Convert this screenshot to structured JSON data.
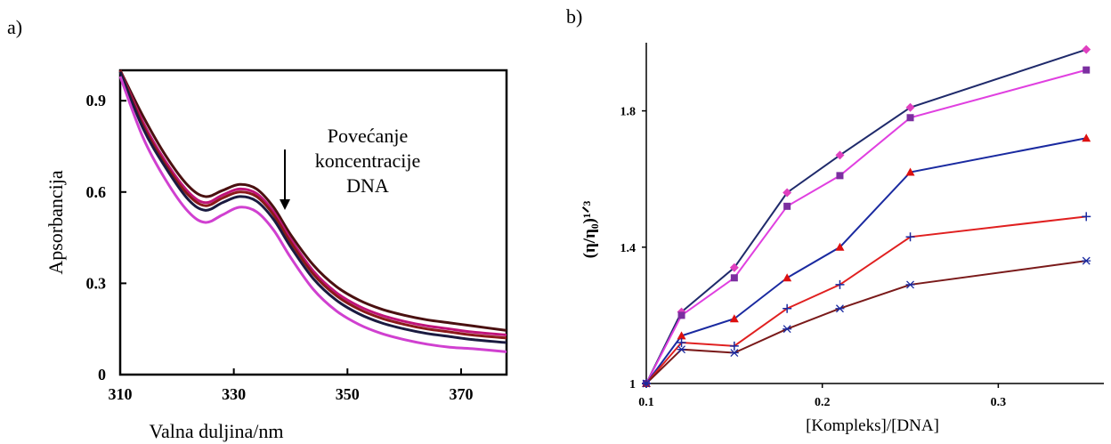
{
  "panels": [
    {
      "label": "a)"
    },
    {
      "label": "b)"
    }
  ],
  "chart_data": [
    {
      "type": "line",
      "xlabel": "Valna duljina/nm",
      "ylabel": "Apsorbancija",
      "xlim": [
        310,
        378
      ],
      "ylim": [
        0,
        1.0
      ],
      "x_ticks": [
        310,
        330,
        350,
        370
      ],
      "y_ticks": [
        0,
        0.3,
        0.6,
        0.9
      ],
      "x_tick_labels": [
        "310",
        "330",
        "350",
        "370"
      ],
      "y_tick_labels": [
        "0",
        "0.3",
        "0.6",
        "0.9"
      ],
      "annotation": [
        "Povećanje",
        "koncentracije",
        "DNA"
      ],
      "grid": false,
      "series": [
        {
          "color": "#4a1010",
          "x": [
            310,
            314,
            318,
            322,
            325,
            328,
            331,
            334,
            337,
            340,
            344,
            348,
            352,
            356,
            360,
            364,
            368,
            372,
            378
          ],
          "y": [
            1.0,
            0.85,
            0.72,
            0.62,
            0.585,
            0.605,
            0.625,
            0.61,
            0.55,
            0.46,
            0.36,
            0.29,
            0.245,
            0.215,
            0.195,
            0.18,
            0.17,
            0.16,
            0.145
          ]
        },
        {
          "color": "#c0137a",
          "x": [
            310,
            314,
            318,
            322,
            325,
            328,
            331,
            334,
            337,
            340,
            344,
            348,
            352,
            356,
            360,
            364,
            368,
            372,
            378
          ],
          "y": [
            1.0,
            0.83,
            0.7,
            0.6,
            0.565,
            0.59,
            0.61,
            0.595,
            0.535,
            0.445,
            0.34,
            0.27,
            0.225,
            0.195,
            0.175,
            0.16,
            0.15,
            0.14,
            0.13
          ]
        },
        {
          "color": "#8b1a1a",
          "x": [
            310,
            314,
            318,
            322,
            325,
            328,
            331,
            334,
            337,
            340,
            344,
            348,
            352,
            356,
            360,
            364,
            368,
            372,
            378
          ],
          "y": [
            1.0,
            0.82,
            0.69,
            0.59,
            0.555,
            0.58,
            0.6,
            0.585,
            0.525,
            0.435,
            0.33,
            0.26,
            0.215,
            0.185,
            0.165,
            0.15,
            0.14,
            0.13,
            0.12
          ]
        },
        {
          "color": "#1a1a40",
          "x": [
            310,
            314,
            318,
            322,
            325,
            328,
            331,
            334,
            337,
            340,
            344,
            348,
            352,
            356,
            360,
            364,
            368,
            372,
            378
          ],
          "y": [
            0.995,
            0.81,
            0.68,
            0.575,
            0.54,
            0.565,
            0.585,
            0.57,
            0.51,
            0.42,
            0.315,
            0.245,
            0.2,
            0.17,
            0.15,
            0.135,
            0.125,
            0.115,
            0.105
          ]
        },
        {
          "color": "#d040d0",
          "x": [
            310,
            314,
            318,
            322,
            325,
            328,
            331,
            334,
            337,
            340,
            344,
            348,
            352,
            356,
            360,
            364,
            368,
            372,
            378
          ],
          "y": [
            0.98,
            0.78,
            0.64,
            0.535,
            0.5,
            0.525,
            0.55,
            0.535,
            0.475,
            0.385,
            0.28,
            0.21,
            0.165,
            0.135,
            0.115,
            0.1,
            0.09,
            0.085,
            0.075
          ]
        }
      ]
    },
    {
      "type": "line",
      "xlabel": "[Kompleks]/[DNA]",
      "ylabel": "(η/η₀)¹ᐟ³",
      "xlim": [
        0.1,
        0.36
      ],
      "ylim": [
        1.0,
        2.0
      ],
      "x_ticks": [
        0.1,
        0.2,
        0.3
      ],
      "y_ticks": [
        1.0,
        1.4,
        1.8
      ],
      "x_tick_labels": [
        "0.1",
        "0.2",
        "0.3"
      ],
      "y_tick_labels": [
        "1",
        "1.4",
        "1.8"
      ],
      "grid": false,
      "x": [
        0.1,
        0.12,
        0.15,
        0.18,
        0.21,
        0.25,
        0.35
      ],
      "series": [
        {
          "color": "#1f2a6b",
          "marker": "diamond",
          "marker_color": "#e040c0",
          "values": [
            1.0,
            1.21,
            1.34,
            1.56,
            1.67,
            1.81,
            1.98
          ]
        },
        {
          "color": "#e040e0",
          "marker": "square",
          "marker_color": "#7b2fa0",
          "values": [
            1.0,
            1.2,
            1.31,
            1.52,
            1.61,
            1.78,
            1.92
          ]
        },
        {
          "color": "#1a2aa0",
          "marker": "triangle",
          "marker_color": "#dd1010",
          "values": [
            1.0,
            1.14,
            1.19,
            1.31,
            1.4,
            1.62,
            1.72
          ]
        },
        {
          "color": "#e02020",
          "marker": "plus",
          "marker_color": "#1a2aa0",
          "values": [
            1.0,
            1.12,
            1.11,
            1.22,
            1.29,
            1.43,
            1.49
          ]
        },
        {
          "color": "#7a1a1a",
          "marker": "star",
          "marker_color": "#1a2aa0",
          "values": [
            1.0,
            1.1,
            1.09,
            1.16,
            1.22,
            1.29,
            1.36
          ]
        }
      ]
    }
  ]
}
